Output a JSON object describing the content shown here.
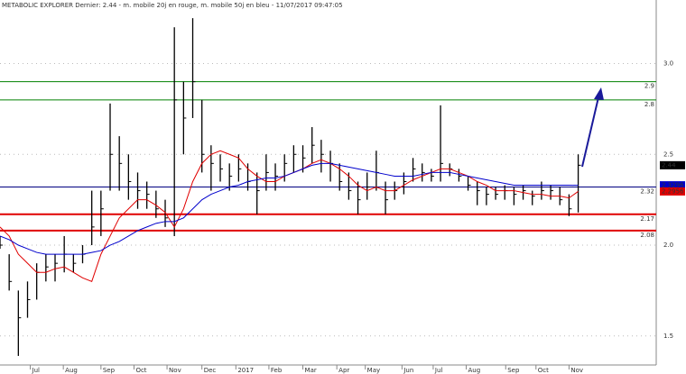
{
  "chart_data": {
    "type": "ohlc",
    "title": "METABOLIC EXPLORER Dernier: 2.44 - m. mobile 20j en rouge, m. mobile 50j en bleu - 11/07/2017 09:47:05",
    "x": [
      0,
      1,
      2,
      3,
      4,
      5,
      6,
      7,
      8,
      9,
      10,
      11,
      12,
      13,
      14,
      15,
      16,
      17,
      18,
      19,
      20,
      21,
      22,
      23,
      24,
      25,
      26,
      27,
      28,
      29,
      30,
      31,
      32,
      33,
      34,
      35,
      36,
      37,
      38,
      39,
      40,
      41,
      42,
      43,
      44,
      45,
      46,
      47,
      48,
      49,
      50,
      51,
      52,
      53,
      54,
      55,
      56,
      57,
      58,
      59,
      60,
      61,
      62,
      63
    ],
    "high": [
      2.05,
      1.95,
      1.75,
      1.8,
      1.9,
      1.95,
      1.95,
      2.05,
      1.95,
      2.0,
      2.3,
      2.3,
      2.78,
      2.6,
      2.5,
      2.4,
      2.35,
      2.3,
      2.25,
      3.2,
      2.9,
      3.25,
      2.8,
      2.55,
      2.5,
      2.45,
      2.5,
      2.45,
      2.4,
      2.5,
      2.45,
      2.5,
      2.55,
      2.55,
      2.65,
      2.58,
      2.52,
      2.45,
      2.4,
      2.35,
      2.4,
      2.52,
      2.35,
      2.35,
      2.4,
      2.48,
      2.45,
      2.42,
      2.77,
      2.45,
      2.42,
      2.38,
      2.35,
      2.32,
      2.32,
      2.33,
      2.32,
      2.33,
      2.3,
      2.35,
      2.33,
      2.32,
      2.28,
      2.5
    ],
    "low": [
      1.98,
      1.75,
      1.39,
      1.6,
      1.7,
      1.8,
      1.8,
      1.85,
      1.85,
      1.9,
      2.0,
      2.05,
      2.3,
      2.3,
      2.25,
      2.2,
      2.2,
      2.15,
      2.1,
      2.05,
      2.5,
      2.7,
      2.4,
      2.3,
      2.35,
      2.3,
      2.35,
      2.3,
      2.17,
      2.3,
      2.3,
      2.35,
      2.4,
      2.4,
      2.45,
      2.4,
      2.35,
      2.3,
      2.25,
      2.17,
      2.25,
      2.3,
      2.17,
      2.25,
      2.28,
      2.35,
      2.35,
      2.35,
      2.35,
      2.38,
      2.35,
      2.3,
      2.22,
      2.22,
      2.25,
      2.25,
      2.22,
      2.25,
      2.22,
      2.25,
      2.25,
      2.22,
      2.16,
      2.18
    ],
    "close": [
      2.0,
      1.8,
      1.6,
      1.7,
      1.85,
      1.88,
      1.9,
      1.95,
      1.9,
      1.95,
      2.1,
      2.2,
      2.5,
      2.45,
      2.35,
      2.3,
      2.28,
      2.2,
      2.15,
      2.8,
      2.7,
      2.9,
      2.5,
      2.45,
      2.42,
      2.38,
      2.42,
      2.35,
      2.3,
      2.4,
      2.38,
      2.45,
      2.5,
      2.48,
      2.55,
      2.5,
      2.45,
      2.35,
      2.3,
      2.25,
      2.32,
      2.4,
      2.25,
      2.3,
      2.35,
      2.42,
      2.4,
      2.38,
      2.45,
      2.42,
      2.38,
      2.33,
      2.3,
      2.28,
      2.28,
      2.3,
      2.28,
      2.3,
      2.27,
      2.3,
      2.3,
      2.25,
      2.2,
      2.44
    ],
    "bar_color": "#000000",
    "series": [
      {
        "color": "#e00000",
        "values": [
          2.1,
          2.05,
          1.95,
          1.9,
          1.85,
          1.85,
          1.87,
          1.88,
          1.85,
          1.82,
          1.8,
          1.95,
          2.05,
          2.15,
          2.2,
          2.25,
          2.25,
          2.22,
          2.18,
          2.1,
          2.2,
          2.35,
          2.45,
          2.5,
          2.52,
          2.5,
          2.48,
          2.42,
          2.38,
          2.35,
          2.35,
          2.38,
          2.4,
          2.42,
          2.45,
          2.47,
          2.45,
          2.42,
          2.38,
          2.33,
          2.3,
          2.32,
          2.3,
          2.3,
          2.33,
          2.36,
          2.38,
          2.4,
          2.42,
          2.42,
          2.4,
          2.38,
          2.35,
          2.33,
          2.3,
          2.3,
          2.3,
          2.29,
          2.28,
          2.28,
          2.27,
          2.27,
          2.26,
          2.2956
        ]
      },
      {
        "color": "#0000cc",
        "values": [
          2.05,
          2.03,
          2.0,
          1.98,
          1.96,
          1.95,
          1.95,
          1.95,
          1.95,
          1.95,
          1.96,
          1.97,
          2.0,
          2.02,
          2.05,
          2.08,
          2.1,
          2.12,
          2.13,
          2.13,
          2.15,
          2.2,
          2.25,
          2.28,
          2.3,
          2.32,
          2.33,
          2.35,
          2.36,
          2.37,
          2.37,
          2.38,
          2.4,
          2.42,
          2.44,
          2.45,
          2.45,
          2.44,
          2.43,
          2.42,
          2.41,
          2.4,
          2.39,
          2.38,
          2.38,
          2.38,
          2.39,
          2.4,
          2.4,
          2.4,
          2.39,
          2.38,
          2.37,
          2.36,
          2.35,
          2.34,
          2.33,
          2.33,
          2.33,
          2.33,
          2.33,
          2.33,
          2.33,
          2.3296
        ]
      }
    ],
    "levels": [
      {
        "value": 2.9,
        "color": "#008000"
      },
      {
        "value": 2.8,
        "color": "#008000"
      },
      {
        "value": 2.32,
        "color": "#000080"
      },
      {
        "value": 2.17,
        "color": "#e00000"
      },
      {
        "value": 2.08,
        "color": "#e00000"
      }
    ],
    "last_values": [
      {
        "value": 2.44,
        "color": "#000000"
      },
      {
        "value": 2.3296,
        "color": "#0000cc"
      },
      {
        "value": 2.2956,
        "color": "#e00000"
      }
    ],
    "xlim": [
      0,
      71.5
    ],
    "xticks": [
      {
        "value": 3.3,
        "label": "Jul"
      },
      {
        "value": 6.9,
        "label": "Aug"
      },
      {
        "value": 11.0,
        "label": "Sep"
      },
      {
        "value": 14.6,
        "label": "Oct"
      },
      {
        "value": 18.2,
        "label": "Nov"
      },
      {
        "value": 22.0,
        "label": "Dec"
      },
      {
        "value": 25.7,
        "label": "2017"
      },
      {
        "value": 29.3,
        "label": "Feb"
      },
      {
        "value": 33.0,
        "label": "Mar"
      },
      {
        "value": 36.7,
        "label": "Apr"
      },
      {
        "value": 39.8,
        "label": "May"
      },
      {
        "value": 43.8,
        "label": "Jun"
      },
      {
        "value": 47.2,
        "label": "Jul"
      },
      {
        "value": 50.8,
        "label": "Aug"
      },
      {
        "value": 55.1,
        "label": "Sep"
      },
      {
        "value": 58.4,
        "label": "Oct"
      },
      {
        "value": 62.0,
        "label": "Nov"
      }
    ],
    "ylim": [
      1.34,
      3.35
    ],
    "yticks": [
      1.5,
      {
        "value": 2.0,
        "label": "2.0"
      },
      2.5,
      {
        "value": 3.0,
        "label": "3.0"
      }
    ],
    "grid": true
  }
}
